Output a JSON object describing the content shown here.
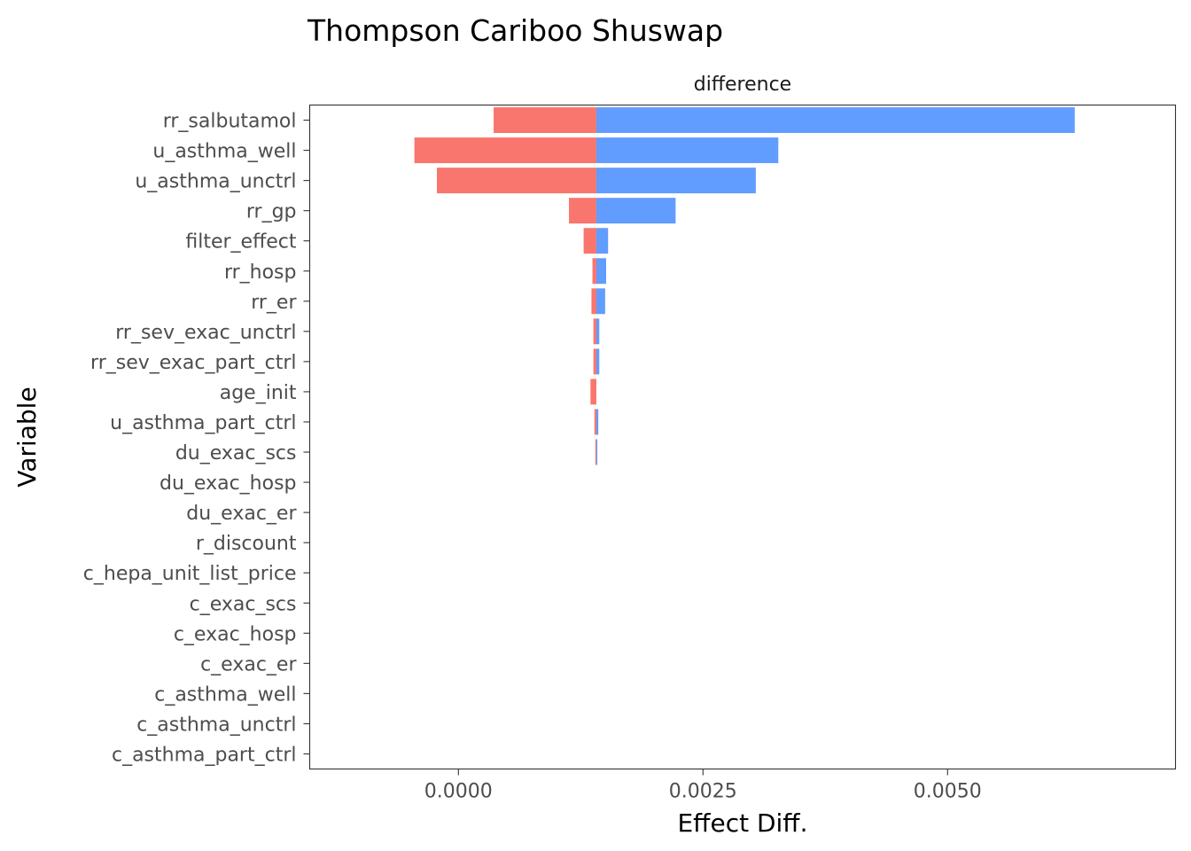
{
  "chart_data": {
    "type": "bar",
    "orientation": "horizontal",
    "chart_style": "tornado",
    "title": "Thompson Cariboo Shuswap",
    "facet_label": "difference",
    "xlabel": "Effect Diff.",
    "ylabel": "Variable",
    "base_value": 0.00141,
    "xlim": [
      -0.00152,
      0.00733
    ],
    "xticks": [
      0.0,
      0.0025,
      0.005
    ],
    "xtick_labels": [
      "0.0000",
      "0.0025",
      "0.0050"
    ],
    "grid": false,
    "legend": "none",
    "colors": {
      "low": "#F8766D",
      "high": "#619CFF"
    },
    "categories": [
      "rr_salbutamol",
      "u_asthma_well",
      "u_asthma_unctrl",
      "rr_gp",
      "filter_effect",
      "rr_hosp",
      "rr_er",
      "rr_sev_exac_unctrl",
      "rr_sev_exac_part_ctrl",
      "age_init",
      "u_asthma_part_ctrl",
      "du_exac_scs",
      "du_exac_hosp",
      "du_exac_er",
      "r_discount",
      "c_hepa_unit_list_price",
      "c_exac_scs",
      "c_exac_hosp",
      "c_exac_er",
      "c_asthma_well",
      "c_asthma_unctrl",
      "c_asthma_part_ctrl"
    ],
    "series": [
      {
        "name": "low",
        "values": [
          0.00036,
          -0.00045,
          -0.00022,
          0.00113,
          0.00128,
          0.00137,
          0.00136,
          0.00138,
          0.00138,
          0.00135,
          0.00139,
          0.0014,
          0.00141,
          0.00141,
          0.00141,
          0.00141,
          0.00141,
          0.00141,
          0.00141,
          0.00141,
          0.00141,
          0.00141
        ]
      },
      {
        "name": "high",
        "values": [
          0.0063,
          0.00327,
          0.00304,
          0.00222,
          0.00153,
          0.00151,
          0.0015,
          0.00144,
          0.00144,
          0.00141,
          0.00143,
          0.00142,
          0.00141,
          0.00141,
          0.00141,
          0.00141,
          0.00141,
          0.00141,
          0.00141,
          0.00141,
          0.00141,
          0.00141
        ]
      }
    ]
  }
}
